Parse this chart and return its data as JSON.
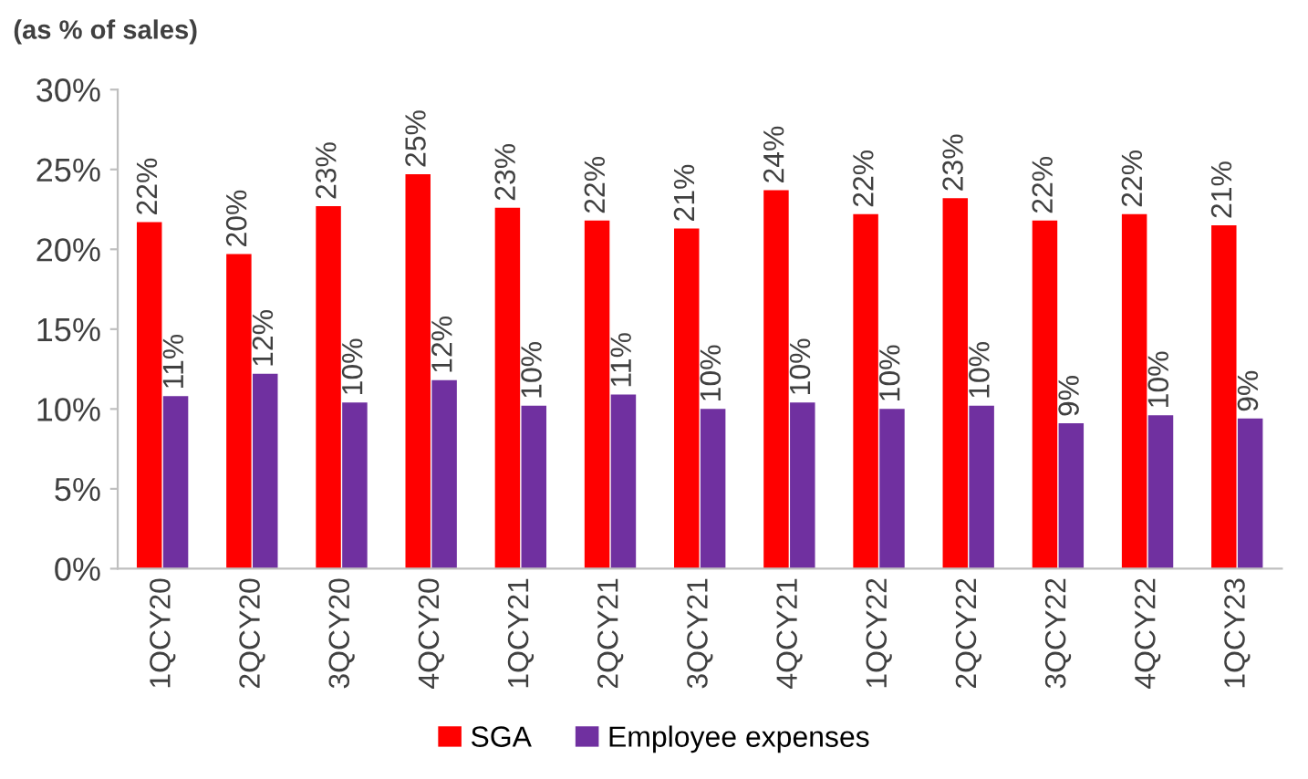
{
  "chart_data": {
    "type": "bar",
    "title": "(as % of sales)",
    "categories": [
      "1QCY20",
      "2QCY20",
      "3QCY20",
      "4QCY20",
      "1QCY21",
      "2QCY21",
      "3QCY21",
      "4QCY21",
      "1QCY22",
      "2QCY22",
      "3QCY22",
      "4QCY22",
      "1QCY23"
    ],
    "series": [
      {
        "name": "SGA",
        "color": "#ff0000",
        "values": [
          21.7,
          19.7,
          22.7,
          24.7,
          22.6,
          21.8,
          21.3,
          23.7,
          22.2,
          23.2,
          21.8,
          22.2,
          21.5
        ],
        "value_labels": [
          "22%",
          "20%",
          "23%",
          "25%",
          "23%",
          "22%",
          "21%",
          "24%",
          "22%",
          "23%",
          "22%",
          "22%",
          "21%"
        ]
      },
      {
        "name": "Employee expenses",
        "color": "#7030a0",
        "values": [
          10.8,
          12.2,
          10.4,
          11.8,
          10.2,
          10.9,
          10.0,
          10.4,
          10.0,
          10.2,
          9.1,
          9.6,
          9.4
        ],
        "value_labels": [
          "11%",
          "12%",
          "10%",
          "12%",
          "10%",
          "11%",
          "10%",
          "10%",
          "10%",
          "10%",
          "9%",
          "10%",
          "9%"
        ]
      }
    ],
    "ylim": [
      0,
      30
    ],
    "yticks": [
      {
        "value": 0,
        "label": "0%"
      },
      {
        "value": 5,
        "label": "5%"
      },
      {
        "value": 10,
        "label": "10%"
      },
      {
        "value": 15,
        "label": "15%"
      },
      {
        "value": 20,
        "label": "20%"
      },
      {
        "value": 25,
        "label": "25%"
      },
      {
        "value": 30,
        "label": "30%"
      }
    ],
    "legend": "bottom",
    "grid": false
  }
}
